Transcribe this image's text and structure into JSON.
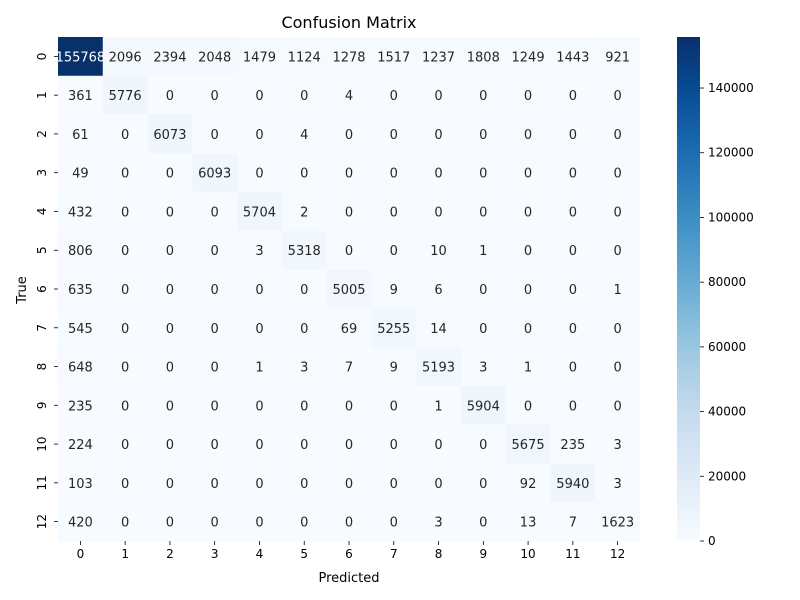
{
  "chart_data": {
    "type": "heatmap",
    "title": "Confusion Matrix",
    "xlabel": "Predicted",
    "ylabel": "True",
    "x_categories": [
      "0",
      "1",
      "2",
      "3",
      "4",
      "5",
      "6",
      "7",
      "8",
      "9",
      "10",
      "11",
      "12"
    ],
    "y_categories": [
      "0",
      "1",
      "2",
      "3",
      "4",
      "5",
      "6",
      "7",
      "8",
      "9",
      "10",
      "11",
      "12"
    ],
    "values": [
      [
        155768,
        2096,
        2394,
        2048,
        1479,
        1124,
        1278,
        1517,
        1237,
        1808,
        1249,
        1443,
        921
      ],
      [
        361,
        5776,
        0,
        0,
        0,
        0,
        4,
        0,
        0,
        0,
        0,
        0,
        0
      ],
      [
        61,
        0,
        6073,
        0,
        0,
        4,
        0,
        0,
        0,
        0,
        0,
        0,
        0
      ],
      [
        49,
        0,
        0,
        6093,
        0,
        0,
        0,
        0,
        0,
        0,
        0,
        0,
        0
      ],
      [
        432,
        0,
        0,
        0,
        5704,
        2,
        0,
        0,
        0,
        0,
        0,
        0,
        0
      ],
      [
        806,
        0,
        0,
        0,
        3,
        5318,
        0,
        0,
        10,
        1,
        0,
        0,
        0
      ],
      [
        635,
        0,
        0,
        0,
        0,
        0,
        5005,
        9,
        6,
        0,
        0,
        0,
        1
      ],
      [
        545,
        0,
        0,
        0,
        0,
        0,
        69,
        5255,
        14,
        0,
        0,
        0,
        0
      ],
      [
        648,
        0,
        0,
        0,
        1,
        3,
        7,
        9,
        5193,
        3,
        1,
        0,
        0
      ],
      [
        235,
        0,
        0,
        0,
        0,
        0,
        0,
        0,
        1,
        5904,
        0,
        0,
        0
      ],
      [
        224,
        0,
        0,
        0,
        0,
        0,
        0,
        0,
        0,
        0,
        5675,
        235,
        3
      ],
      [
        103,
        0,
        0,
        0,
        0,
        0,
        0,
        0,
        0,
        0,
        92,
        5940,
        3
      ],
      [
        420,
        0,
        0,
        0,
        0,
        0,
        0,
        0,
        3,
        0,
        13,
        7,
        1623
      ]
    ],
    "colormap": "Blues",
    "colorbar": {
      "min": 0,
      "max": 155768,
      "ticks": [
        0,
        20000,
        40000,
        60000,
        80000,
        100000,
        120000,
        140000
      ]
    },
    "annotations": true
  }
}
